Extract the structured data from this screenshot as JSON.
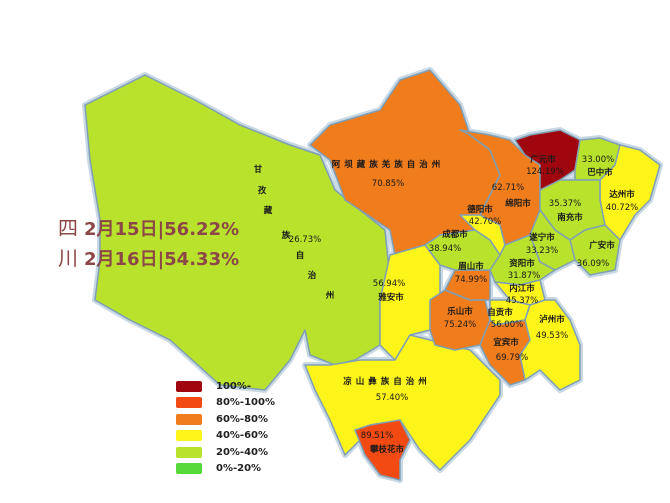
{
  "title": {
    "province_chars": [
      "四",
      "川"
    ],
    "lines": [
      {
        "date": "2月15日",
        "value": "56.22%"
      },
      {
        "date": "2月16日",
        "value": "54.33%"
      }
    ]
  },
  "legend": [
    {
      "label": "100%-",
      "color": "#a0060e"
    },
    {
      "label": "80%-100%",
      "color": "#f24a12"
    },
    {
      "label": "60%-80%",
      "color": "#f07c1c"
    },
    {
      "label": "40%-60%",
      "color": "#fdf51a"
    },
    {
      "label": "20%-40%",
      "color": "#b9e22c"
    },
    {
      "label": "0%-20%",
      "color": "#55d838"
    }
  ],
  "regions": [
    {
      "name": "甘孜藏族自治州",
      "value": "26.73%",
      "color": "#b9e22c"
    },
    {
      "name": "阿坝藏族羌族自治州",
      "value": "70.85%",
      "color": "#f07c1c"
    },
    {
      "name": "雅安市",
      "value": "56.94%",
      "color": "#fdf51a"
    },
    {
      "name": "凉山彝族自治州",
      "value": "57.40%",
      "color": "#fdf51a"
    },
    {
      "name": "攀枝花市",
      "value": "89.51%",
      "color": "#f24a12"
    },
    {
      "name": "乐山市",
      "value": "75.24%",
      "color": "#f07c1c"
    },
    {
      "name": "眉山市",
      "value": "74.99%",
      "color": "#f07c1c"
    },
    {
      "name": "成都市",
      "value": "38.94%",
      "color": "#b9e22c"
    },
    {
      "name": "德阳市",
      "value": "42.70%",
      "color": "#fdf51a"
    },
    {
      "name": "绵阳市",
      "value": "62.71%",
      "color": "#f07c1c"
    },
    {
      "name": "广元市",
      "value": "124.19%",
      "color": "#a0060e"
    },
    {
      "name": "巴中市",
      "value": "33.00%",
      "color": "#b9e22c"
    },
    {
      "name": "达州市",
      "value": "40.72%",
      "color": "#fdf51a"
    },
    {
      "name": "南充市",
      "value": "35.37%",
      "color": "#b9e22c"
    },
    {
      "name": "广安市",
      "value": "36.09%",
      "color": "#b9e22c"
    },
    {
      "name": "遂宁市",
      "value": "33.23%",
      "color": "#b9e22c"
    },
    {
      "name": "资阳市",
      "value": "31.87%",
      "color": "#b9e22c"
    },
    {
      "name": "内江市",
      "value": "45.37%",
      "color": "#fdf51a"
    },
    {
      "name": "自贡市",
      "value": "56.00%",
      "color": "#fdf51a"
    },
    {
      "name": "宜宾市",
      "value": "69.79%",
      "color": "#f07c1c"
    },
    {
      "name": "泸州市",
      "value": "49.53%",
      "color": "#fdf51a"
    }
  ]
}
